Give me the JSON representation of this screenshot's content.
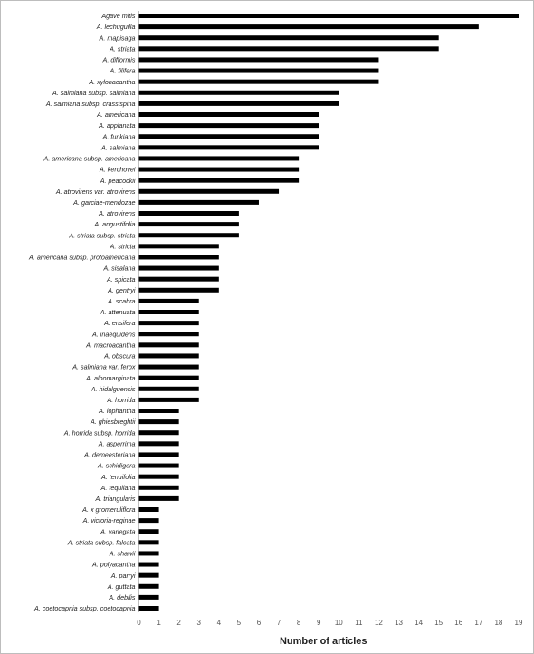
{
  "chart_data": {
    "type": "bar",
    "orientation": "horizontal",
    "xlabel": "Number of articles",
    "xlim": [
      0,
      19
    ],
    "xticks": [
      "0",
      "1",
      "2",
      "3",
      "4",
      "5",
      "6",
      "7",
      "8",
      "9",
      "10",
      "11",
      "12",
      "13",
      "14",
      "15",
      "16",
      "17",
      "18",
      "19"
    ],
    "grid": false,
    "bar_color": "#000000",
    "categories": [
      "Agave mitis",
      "A. lechuguilla",
      "A. mapisaga",
      "A. striata",
      "A. difformis",
      "A. filifera",
      "A. xylonacantha",
      "A. salmiana subsp. salmiana",
      "A. salmiana subsp. crassispina",
      "A. americana",
      "A. applanata",
      "A. funkiana",
      "A. salmiana",
      "A. americana subsp. americana",
      "A. kerchovei",
      "A. peacockii",
      "A. atrovirens var. atrovirens",
      "A. garciae-mendozae",
      "A. atrovirens",
      "A. angustifolia",
      "A. striata subsp. striata",
      "A. stricta",
      "A. americana subsp. protoamericana",
      "A. sisalana",
      "A. spicata",
      "A. gentryi",
      "A. scabra",
      "A. attenuata",
      "A. ensifera",
      "A. inaequidens",
      "A. macroacantha",
      "A. obscura",
      "A. salmiana var. ferox",
      "A. albomarginata",
      "A. hidalguensis",
      "A. horrida",
      "A. lophantha",
      "A. ghiesbreghtii",
      "A. horrida subsp. horrida",
      "A. asperrima",
      "A. demeesteriana",
      "A. schidigera",
      "A. tenuifolia",
      "A. tequilana",
      "A. triangularis",
      "A.  x gromeruliflora",
      "A. victoria-reginae",
      "A. variegata",
      "A. striata subsp. falcata",
      "A. shawii",
      "A. polyacantha",
      "A. parryi",
      "A. guttata",
      "A. debilis",
      "A. coetocapnia subsp. coetocapnia"
    ],
    "values": [
      19,
      17,
      15,
      15,
      12,
      12,
      12,
      10,
      10,
      9,
      9,
      9,
      9,
      8,
      8,
      8,
      7,
      6,
      5,
      5,
      5,
      4,
      4,
      4,
      4,
      4,
      3,
      3,
      3,
      3,
      3,
      3,
      3,
      3,
      3,
      3,
      2,
      2,
      2,
      2,
      2,
      2,
      2,
      2,
      2,
      1,
      1,
      1,
      1,
      1,
      1,
      1,
      1,
      1,
      1
    ]
  }
}
